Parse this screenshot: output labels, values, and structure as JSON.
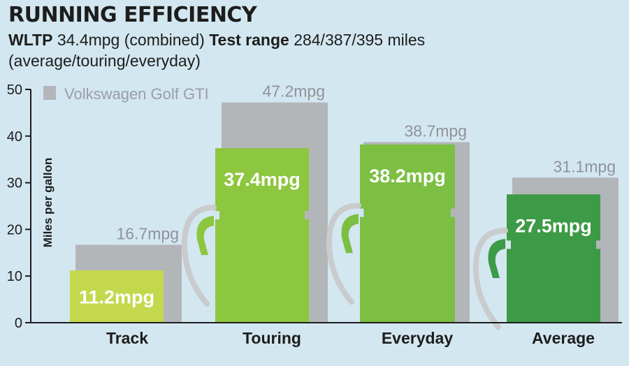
{
  "header": {
    "title": "RUNNING EFFICIENCY",
    "wltp_label": "WLTP",
    "wltp_value": "34.4mpg (combined)",
    "range_label": "Test range",
    "range_value": "284/387/395 miles",
    "range_note": "(average/touring/everyday)"
  },
  "colors": {
    "background": "#d3e7f1",
    "reference_grey": "#b3b6b9",
    "track": "#c4d84d",
    "touring": "#8dc63f",
    "everyday": "#7cbf43",
    "average": "#3d9a46",
    "text": "#1d1d1b"
  },
  "chart_data": {
    "type": "bar",
    "ylabel": "Miles per gallon",
    "ylim": [
      0,
      50
    ],
    "yticks": [
      0,
      10,
      20,
      30,
      40,
      50
    ],
    "categories": [
      "Track",
      "Touring",
      "Everyday",
      "Average"
    ],
    "series": [
      {
        "name": "Volkswagen Golf GTI",
        "values": [
          16.7,
          47.2,
          38.7,
          31.1
        ],
        "labels": [
          "16.7mpg",
          "47.2mpg",
          "38.7mpg",
          "31.1mpg"
        ]
      },
      {
        "values": [
          11.2,
          37.4,
          38.2,
          27.5
        ],
        "labels": [
          "11.2mpg",
          "37.4mpg",
          "38.2mpg",
          "27.5mpg"
        ]
      }
    ],
    "legend": "top-left",
    "grid": false
  }
}
